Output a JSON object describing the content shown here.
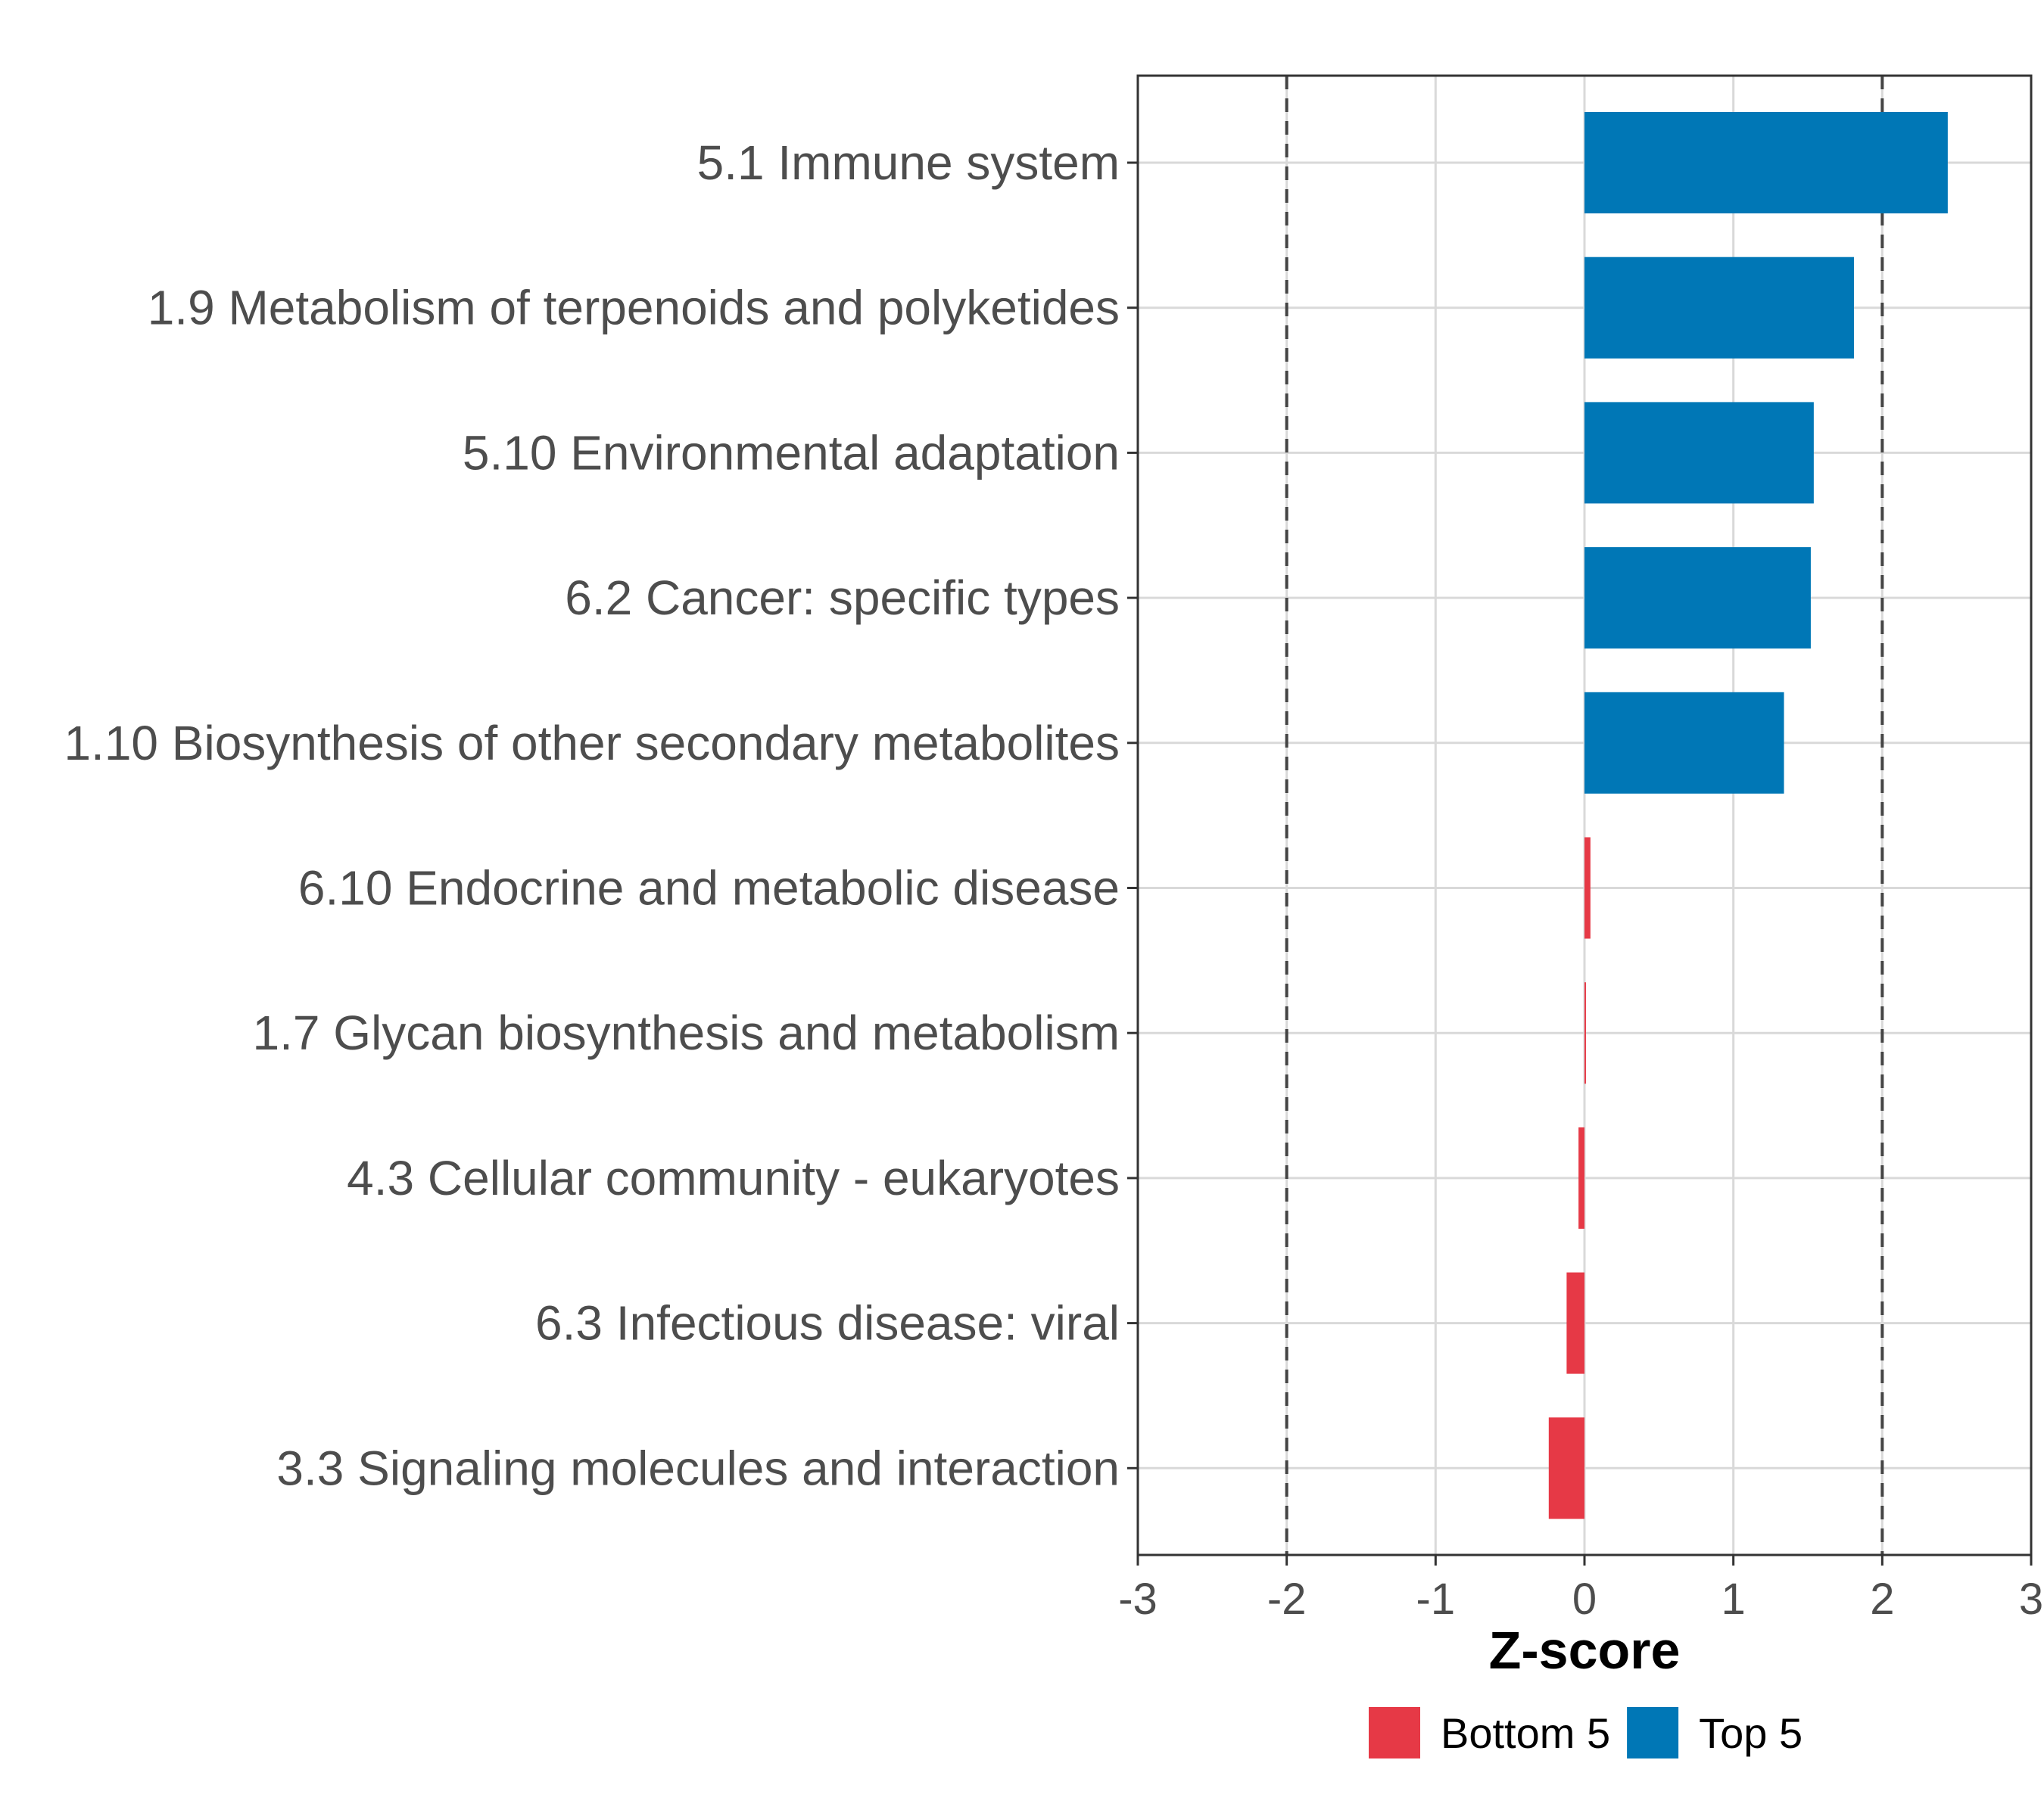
{
  "chart_data": {
    "type": "bar",
    "orientation": "horizontal",
    "xlabel": "Z-score",
    "xlim": [
      -3,
      3
    ],
    "x_ticks": [
      -3,
      -2,
      -1,
      0,
      1,
      2,
      3
    ],
    "x_tick_labels": [
      "-3",
      "-2",
      "-1",
      "0",
      "1",
      "2",
      "3"
    ],
    "reference_lines": [
      -2,
      2
    ],
    "grid": true,
    "legend_position": "bottom",
    "legend": [
      {
        "label": "Bottom 5",
        "color": "#e63946"
      },
      {
        "label": "Top 5",
        "color": "#0077b6"
      }
    ],
    "categories": [
      "5.1 Immune system",
      "1.9 Metabolism of terpenoids and polyketides",
      "5.10 Environmental adaptation",
      "6.2 Cancer: specific types",
      "1.10 Biosynthesis of other secondary metabolites",
      "6.10 Endocrine and metabolic disease",
      "1.7 Glycan biosynthesis and metabolism",
      "4.3 Cellular community - eukaryotes",
      "6.3 Infectious disease: viral",
      "3.3 Signaling molecules and interaction"
    ],
    "values": [
      2.44,
      1.81,
      1.54,
      1.52,
      1.34,
      0.04,
      0.01,
      -0.04,
      -0.12,
      -0.24
    ],
    "groups": [
      "Top 5",
      "Top 5",
      "Top 5",
      "Top 5",
      "Top 5",
      "Bottom 5",
      "Bottom 5",
      "Bottom 5",
      "Bottom 5",
      "Bottom 5"
    ]
  }
}
